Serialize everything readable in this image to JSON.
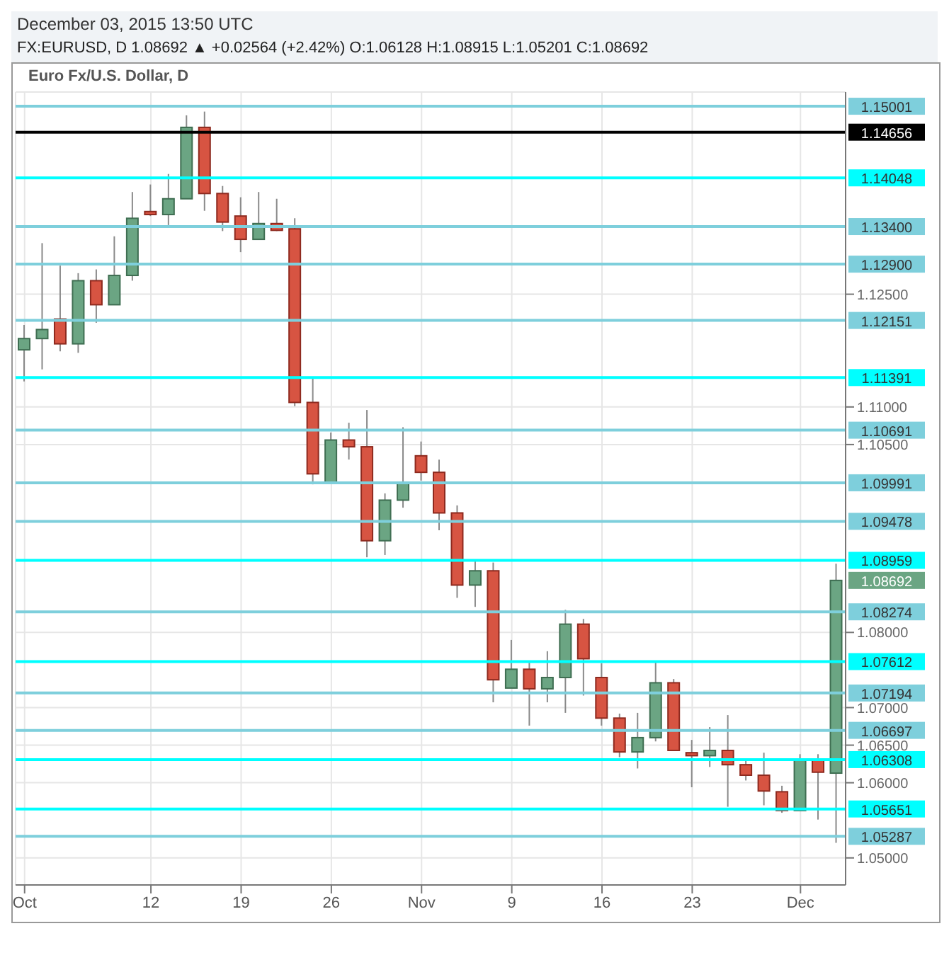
{
  "chart_data": {
    "type": "candlestick",
    "title": "Euro Fx/U.S. Dollar, D",
    "subtitle": "FX:EURUSD, D 1.08692 ▲ +0.02564 (+2.42%) O:1.06128 H:1.08915 L:1.05201 C:1.08692",
    "annotations": [
      "December 03, 2015 13:50 UTC",
      "1.08692"
    ],
    "categories": [
      "Oct",
      null,
      null,
      null,
      null,
      null,
      null,
      "12",
      null,
      null,
      null,
      null,
      "19",
      null,
      null,
      null,
      null,
      "26",
      null,
      null,
      null,
      null,
      "Nov",
      null,
      null,
      null,
      null,
      "9",
      null,
      null,
      null,
      null,
      "16",
      null,
      null,
      null,
      null,
      "23",
      null,
      null,
      null,
      null,
      null,
      "Dec",
      null,
      null
    ],
    "ohlc": [
      [
        1.1176,
        1.1209,
        1.1134,
        1.1191
      ],
      [
        1.1191,
        1.1318,
        1.115,
        1.1203
      ],
      [
        1.1217,
        1.1288,
        1.1174,
        1.1184
      ],
      [
        1.1184,
        1.1278,
        1.1172,
        1.1268
      ],
      [
        1.1268,
        1.1283,
        1.1212,
        1.1236
      ],
      [
        1.1236,
        1.1327,
        1.1236,
        1.1275
      ],
      [
        1.1275,
        1.1386,
        1.1268,
        1.1351
      ],
      [
        1.136,
        1.1396,
        1.1354,
        1.1356
      ],
      [
        1.1356,
        1.141,
        1.1342,
        1.1377
      ],
      [
        1.1377,
        1.1488,
        1.1377,
        1.1472
      ],
      [
        1.1472,
        1.1493,
        1.1361,
        1.1384
      ],
      [
        1.1384,
        1.1394,
        1.1334,
        1.1346
      ],
      [
        1.1354,
        1.1379,
        1.1306,
        1.1323
      ],
      [
        1.1323,
        1.1386,
        1.1323,
        1.1344
      ],
      [
        1.1344,
        1.1377,
        1.1334,
        1.1335
      ],
      [
        1.1337,
        1.1351,
        1.1101,
        1.1106
      ],
      [
        1.1106,
        1.1138,
        1.0997,
        1.1011
      ],
      [
        1.0999,
        1.1066,
        1.0999,
        1.1056
      ],
      [
        1.1056,
        1.1079,
        1.103,
        1.1047
      ],
      [
        1.1047,
        1.1096,
        1.09,
        1.0922
      ],
      [
        1.0922,
        1.0985,
        1.0903,
        1.0976
      ],
      [
        1.0976,
        1.1073,
        1.0966,
        1.1
      ],
      [
        1.1035,
        1.1054,
        1.1002,
        1.1013
      ],
      [
        1.1013,
        1.103,
        1.0936,
        1.0959
      ],
      [
        1.0959,
        1.0969,
        1.0846,
        1.0863
      ],
      [
        1.0863,
        1.0895,
        1.0834,
        1.0882
      ],
      [
        1.0882,
        1.0893,
        1.0707,
        1.0737
      ],
      [
        1.0726,
        1.079,
        1.0726,
        1.0751
      ],
      [
        1.0751,
        1.0761,
        1.0676,
        1.0725
      ],
      [
        1.0725,
        1.0775,
        1.0707,
        1.074
      ],
      [
        1.074,
        1.083,
        1.0693,
        1.0811
      ],
      [
        1.0811,
        1.0818,
        1.0716,
        1.0765
      ],
      [
        1.074,
        1.0759,
        1.0676,
        1.0686
      ],
      [
        1.0686,
        1.0692,
        1.0634,
        1.0641
      ],
      [
        1.0641,
        1.0693,
        1.0619,
        1.066
      ],
      [
        1.066,
        1.0761,
        1.0655,
        1.0733
      ],
      [
        1.0733,
        1.0738,
        1.0643,
        1.0643
      ],
      [
        1.064,
        1.0657,
        1.0594,
        1.0636
      ],
      [
        1.0636,
        1.0674,
        1.0621,
        1.0643
      ],
      [
        1.0643,
        1.069,
        1.0568,
        1.0624
      ],
      [
        1.0624,
        1.0629,
        1.0603,
        1.061
      ],
      [
        1.061,
        1.064,
        1.057,
        1.0589
      ],
      [
        1.0588,
        1.0596,
        1.056,
        1.0563
      ],
      [
        1.0563,
        1.0638,
        1.0563,
        1.0631
      ],
      [
        1.0631,
        1.0638,
        1.0551,
        1.0614
      ],
      [
        1.06128,
        1.08915,
        1.05201,
        1.08692
      ]
    ],
    "ylim": [
      1.0464,
      1.1519
    ],
    "yticks": [
      {
        "value": 1.125,
        "label": "1.12500"
      },
      {
        "value": 1.11,
        "label": "1.11000"
      },
      {
        "value": 1.105,
        "label": "1.10500"
      },
      {
        "value": 1.08,
        "label": "1.08000"
      },
      {
        "value": 1.07,
        "label": "1.07000"
      },
      {
        "value": 1.065,
        "label": "1.06500"
      },
      {
        "value": 1.06,
        "label": "1.06000"
      },
      {
        "value": 1.05,
        "label": "1.05000"
      }
    ],
    "grid": true,
    "ref_lines": [
      {
        "axis": "y",
        "value": 1.15001,
        "label": "1.15001",
        "color": "#7ecfdc"
      },
      {
        "axis": "y",
        "value": 1.14656,
        "label": "1.14656",
        "color": "#000000"
      },
      {
        "axis": "y",
        "value": 1.14048,
        "label": "1.14048",
        "color": "#00ffff"
      },
      {
        "axis": "y",
        "value": 1.134,
        "label": "1.13400",
        "color": "#7ecfdc"
      },
      {
        "axis": "y",
        "value": 1.129,
        "label": "1.12900",
        "color": "#7ecfdc"
      },
      {
        "axis": "y",
        "value": 1.12151,
        "label": "1.12151",
        "color": "#7ecfdc"
      },
      {
        "axis": "y",
        "value": 1.11391,
        "label": "1.11391",
        "color": "#00ffff"
      },
      {
        "axis": "y",
        "value": 1.10691,
        "label": "1.10691",
        "color": "#7ecfdc"
      },
      {
        "axis": "y",
        "value": 1.09991,
        "label": "1.09991",
        "color": "#7ecfdc"
      },
      {
        "axis": "y",
        "value": 1.09478,
        "label": "1.09478",
        "color": "#7ecfdc"
      },
      {
        "axis": "y",
        "value": 1.08959,
        "label": "1.08959",
        "color": "#00ffff"
      },
      {
        "axis": "y",
        "value": 1.08274,
        "label": "1.08274",
        "color": "#7ecfdc"
      },
      {
        "axis": "y",
        "value": 1.07612,
        "label": "1.07612",
        "color": "#00ffff"
      },
      {
        "axis": "y",
        "value": 1.07194,
        "label": "1.07194",
        "color": "#7ecfdc"
      },
      {
        "axis": "y",
        "value": 1.06697,
        "label": "1.06697",
        "color": "#7ecfdc"
      },
      {
        "axis": "y",
        "value": 1.06308,
        "label": "1.06308",
        "color": "#00ffff"
      },
      {
        "axis": "y",
        "value": 1.05651,
        "label": "1.05651",
        "color": "#00ffff"
      },
      {
        "axis": "y",
        "value": 1.05287,
        "label": "1.05287",
        "color": "#7ecfdc"
      }
    ]
  }
}
